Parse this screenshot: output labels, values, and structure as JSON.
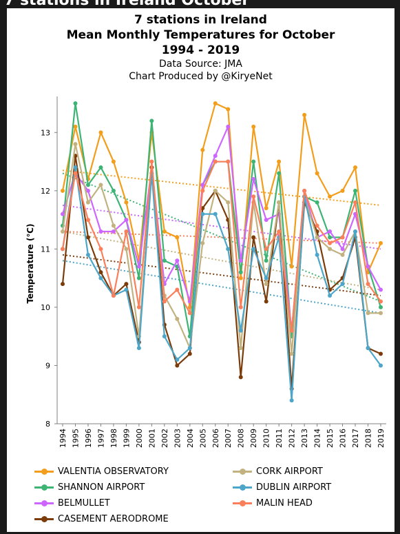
{
  "header_strip": "7 stations in Ireland October",
  "titles": {
    "line1": "7 stations in Ireland",
    "line2": "Mean Monthly Temperatures for October",
    "line3": "1994 - 2019",
    "line4": "Data Source: JMA",
    "line5": "Chart Produced by @KiryeNet"
  },
  "chart_data": {
    "type": "line",
    "title": "7 stations in Ireland Mean Monthly Temperatures for October 1994 - 2019",
    "ylabel": "Temperature (℃)",
    "xlabel": "",
    "ylim": [
      8,
      13.5
    ],
    "yticks": [
      8,
      9,
      10,
      11,
      12,
      13
    ],
    "grid": false,
    "legend_position": "bottom",
    "categories": [
      "1994",
      "1995",
      "1996",
      "1997",
      "1998",
      "1999",
      "2000",
      "2001",
      "2002",
      "2003",
      "2004",
      "2005",
      "2006",
      "2007",
      "2008",
      "2009",
      "2010",
      "2011",
      "2012",
      "2013",
      "2014",
      "2015",
      "2016",
      "2017",
      "2018",
      "2019"
    ],
    "series": [
      {
        "name": "VALENTIA OBSERVATORY",
        "color": "#f29d1b",
        "values": [
          12.0,
          13.1,
          12.2,
          13.0,
          12.5,
          11.8,
          10.8,
          13.0,
          11.3,
          11.2,
          10.0,
          12.7,
          13.5,
          13.4,
          10.5,
          13.1,
          11.7,
          12.5,
          10.7,
          13.3,
          12.3,
          11.9,
          12.0,
          12.4,
          10.6,
          11.1
        ],
        "trend": [
          12.35,
          11.75
        ]
      },
      {
        "name": "SHANNON AIRPORT",
        "color": "#3db374",
        "values": [
          11.4,
          13.5,
          12.1,
          12.4,
          12.0,
          11.5,
          10.5,
          13.2,
          10.8,
          10.7,
          9.5,
          12.1,
          12.5,
          12.5,
          10.6,
          12.5,
          10.8,
          12.3,
          9.5,
          11.9,
          11.8,
          11.2,
          11.2,
          12.0,
          10.7,
          10.0
        ],
        "trend": [
          12.3,
          10.1
        ]
      },
      {
        "name": "BELMULLET",
        "color": "#cc66ff",
        "values": [
          11.6,
          12.3,
          12.0,
          11.3,
          11.3,
          11.5,
          10.7,
          12.4,
          10.4,
          10.8,
          10.1,
          12.1,
          12.6,
          13.1,
          10.8,
          12.2,
          11.5,
          11.6,
          9.6,
          12.0,
          11.2,
          11.3,
          11.0,
          11.6,
          10.7,
          10.3
        ],
        "trend": [
          11.75,
          11.0
        ]
      },
      {
        "name": "CASEMENT AERODROME",
        "color": "#7a3c0a",
        "values": [
          10.4,
          12.6,
          11.2,
          10.6,
          10.2,
          10.4,
          9.4,
          12.4,
          9.7,
          9.0,
          9.2,
          11.7,
          12.0,
          11.5,
          8.8,
          11.2,
          10.1,
          11.8,
          8.6,
          11.8,
          11.3,
          10.3,
          10.5,
          11.2,
          9.3,
          9.2
        ],
        "trend": [
          10.9,
          10.2
        ]
      },
      {
        "name": "CORK AIRPORT",
        "color": "#c2b280",
        "values": [
          11.3,
          12.8,
          11.8,
          12.1,
          11.4,
          11.0,
          9.5,
          12.3,
          10.2,
          9.8,
          9.3,
          11.1,
          12.0,
          11.8,
          9.3,
          11.8,
          10.4,
          11.8,
          9.2,
          11.9,
          11.2,
          11.0,
          10.9,
          11.3,
          9.9,
          9.9
        ],
        "trend": [
          11.3,
          10.3
        ]
      },
      {
        "name": "DUBLIN AIRPORT",
        "color": "#4da6c9",
        "values": [
          11.0,
          12.4,
          10.9,
          10.5,
          10.2,
          10.3,
          9.3,
          12.3,
          9.5,
          9.1,
          9.3,
          11.6,
          11.6,
          11.0,
          9.6,
          11.0,
          10.5,
          11.2,
          8.4,
          11.9,
          10.9,
          10.2,
          10.4,
          11.3,
          9.3,
          9.0
        ],
        "trend": [
          10.8,
          9.9
        ]
      },
      {
        "name": "MALIN HEAD",
        "color": "#fa7f5a",
        "values": [
          11.0,
          12.3,
          11.5,
          11.0,
          10.2,
          11.3,
          10.0,
          12.5,
          10.1,
          10.3,
          9.9,
          12.0,
          12.5,
          12.5,
          10.0,
          11.9,
          11.0,
          11.3,
          9.6,
          12.0,
          11.4,
          11.1,
          11.2,
          11.8,
          10.4,
          10.1
        ],
        "trend": [
          11.3,
          11.1
        ]
      }
    ]
  },
  "legend": [
    {
      "label": "VALENTIA OBSERVATORY",
      "color": "#f29d1b"
    },
    {
      "label": "CORK AIRPORT",
      "color": "#c2b280"
    },
    {
      "label": "SHANNON AIRPORT",
      "color": "#3db374"
    },
    {
      "label": "DUBLIN AIRPORT",
      "color": "#4da6c9"
    },
    {
      "label": "BELMULLET",
      "color": "#cc66ff"
    },
    {
      "label": "MALIN HEAD",
      "color": "#fa7f5a"
    },
    {
      "label": "CASEMENT AERODROME",
      "color": "#7a3c0a"
    }
  ]
}
